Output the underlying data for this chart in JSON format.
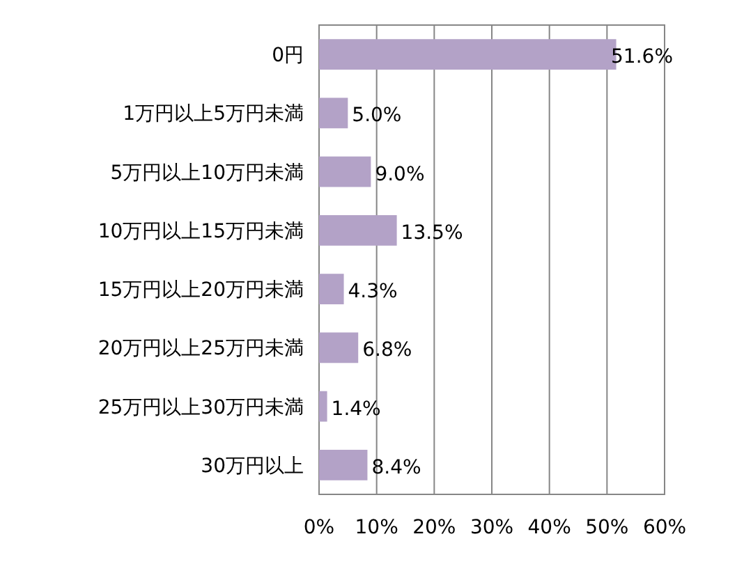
{
  "chart_data": {
    "type": "bar",
    "orientation": "horizontal",
    "categories": [
      "0円",
      "1万円以上5万円未満",
      "5万円以上10万円未満",
      "10万円以上15万円未満",
      "15万円以上20万円未満",
      "20万円以上25万円未満",
      "25万円以上30万円未満",
      "30万円以上"
    ],
    "values": [
      51.6,
      5.0,
      9.0,
      13.5,
      4.3,
      6.8,
      1.4,
      8.4
    ],
    "value_labels": [
      "51.6%",
      "5.0%",
      "9.0%",
      "13.5%",
      "4.3%",
      "6.8%",
      "1.4%",
      "8.4%"
    ],
    "color": "#b3a2c7",
    "xlim": [
      0,
      60
    ],
    "xticks": [
      {
        "value": 0,
        "label": "0%"
      },
      {
        "value": 10,
        "label": "10%"
      },
      {
        "value": 20,
        "label": "20%"
      },
      {
        "value": 30,
        "label": "30%"
      },
      {
        "value": 40,
        "label": "40%"
      },
      {
        "value": 50,
        "label": "50%"
      },
      {
        "value": 60,
        "label": "60%"
      }
    ],
    "grid": "x"
  }
}
